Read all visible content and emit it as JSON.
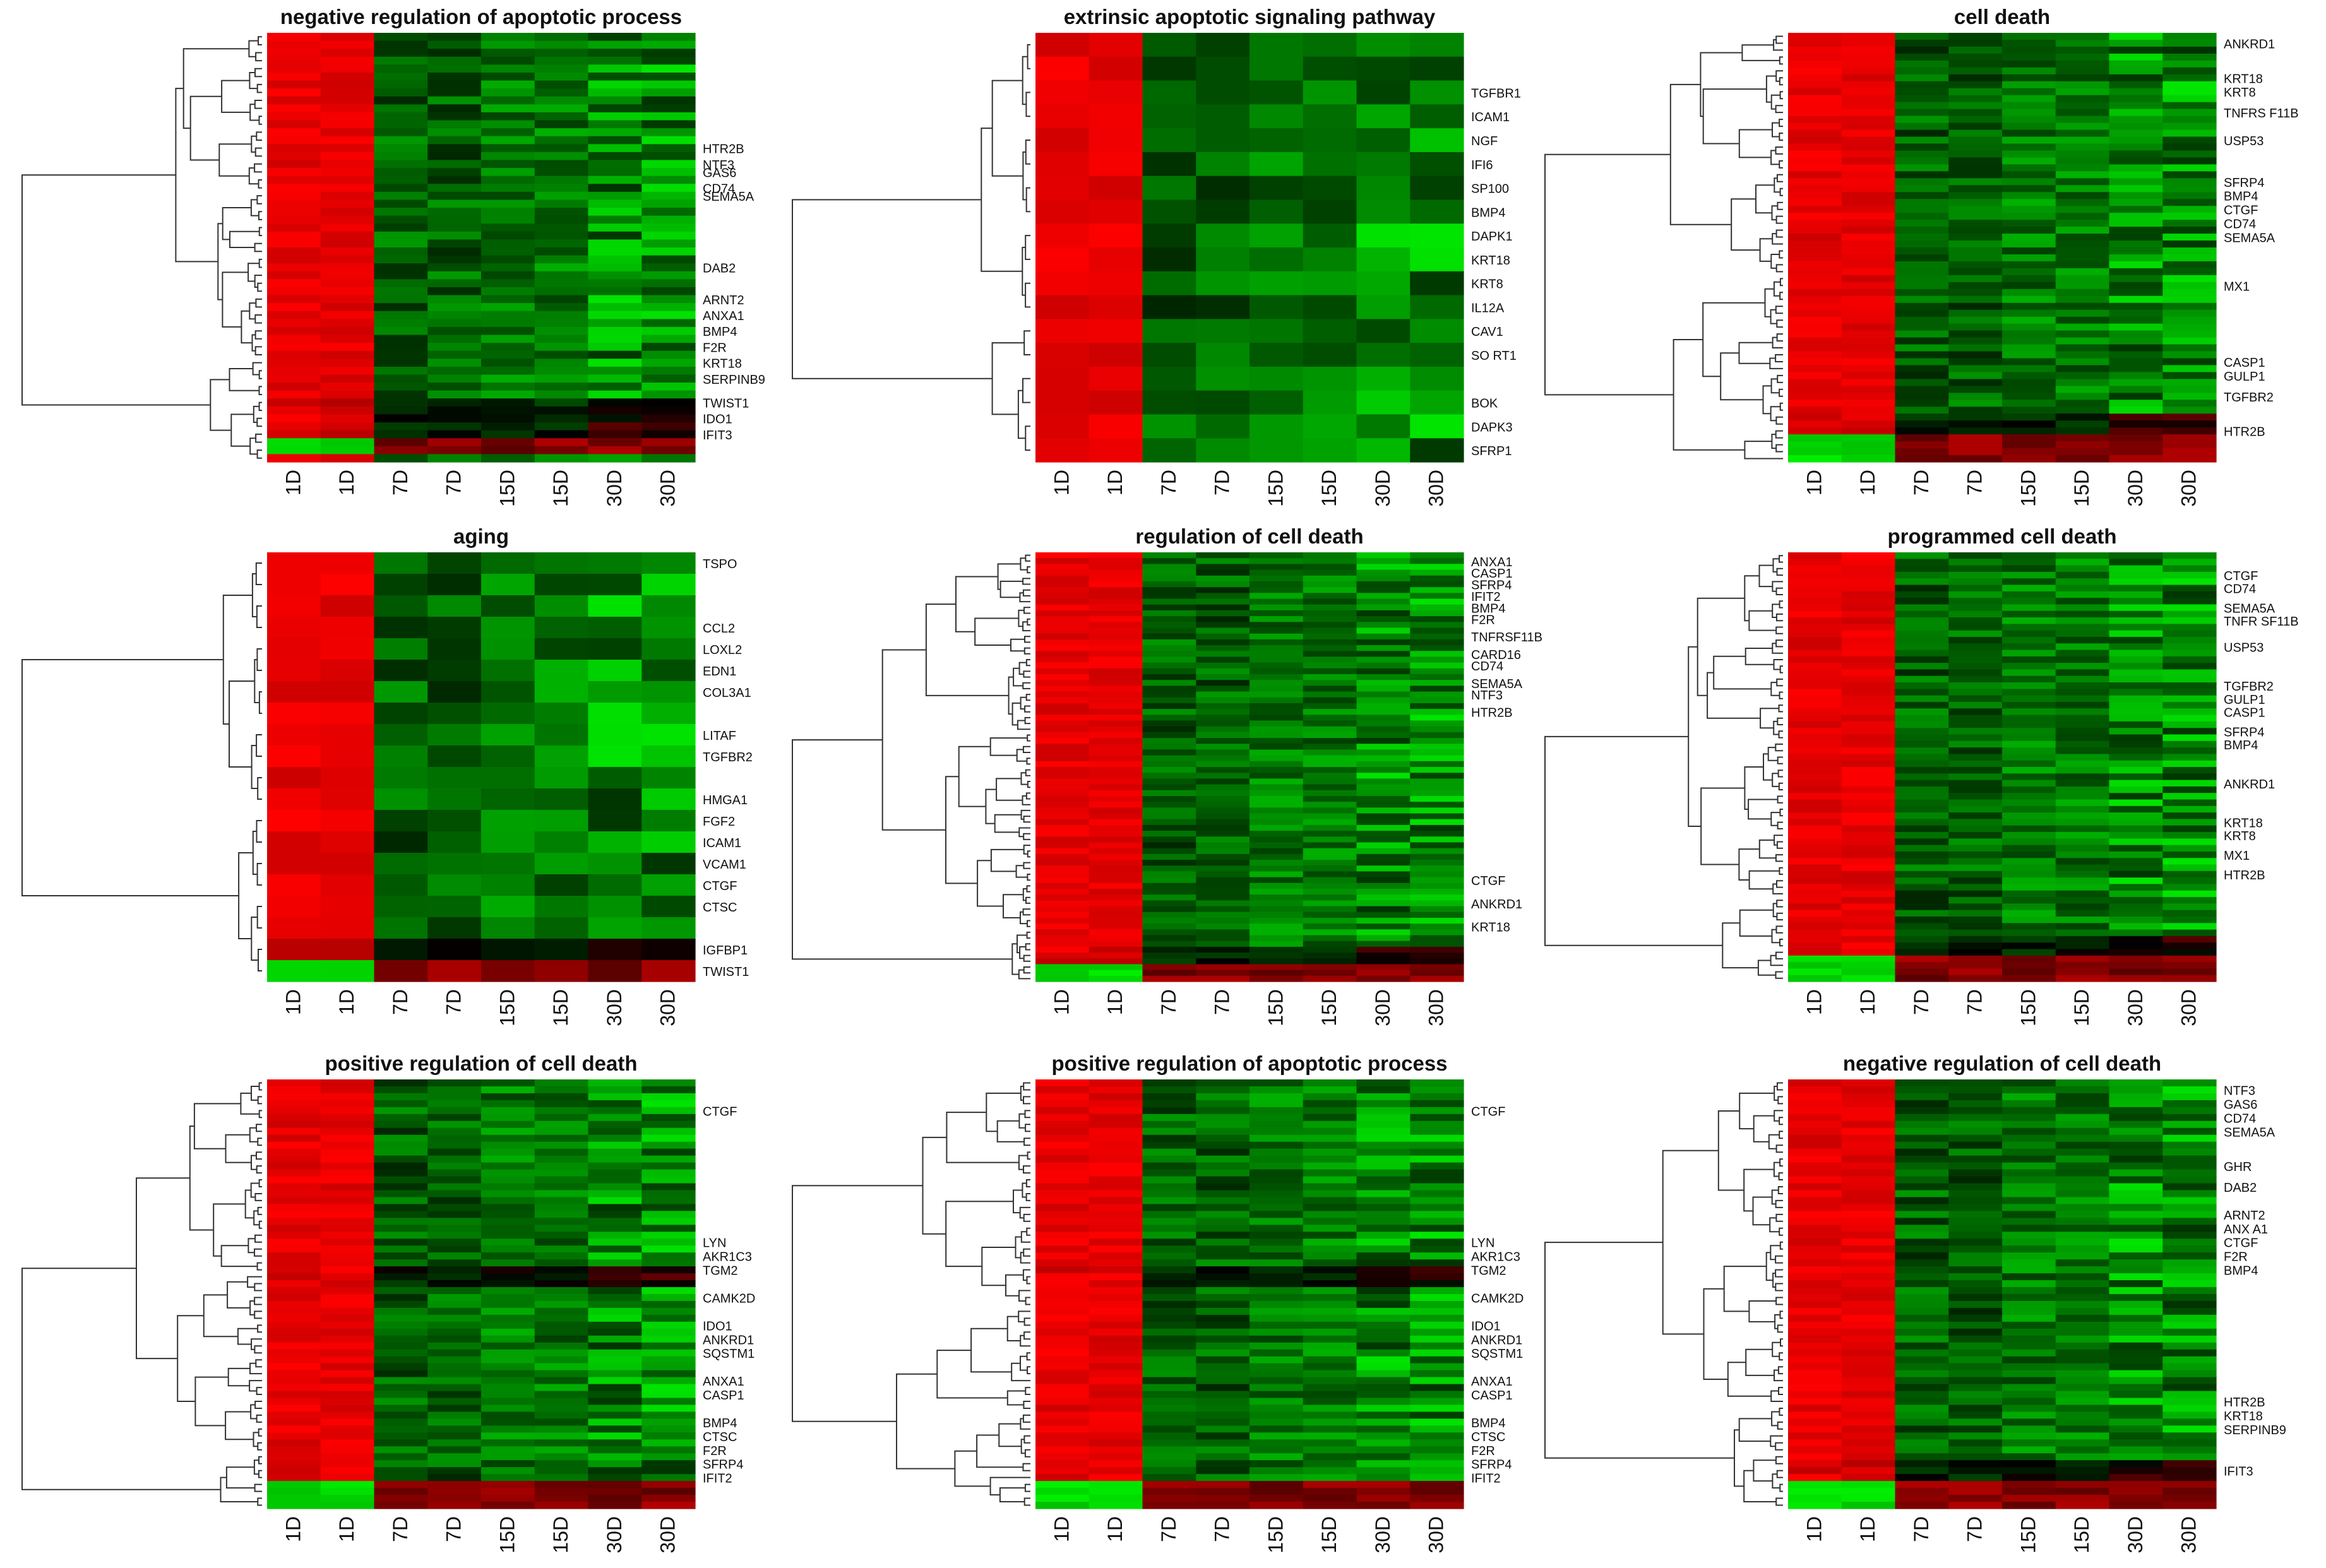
{
  "figure": {
    "colors": {
      "high": "#ff0000",
      "mid": "#000000",
      "low": "#00ff00",
      "dendrogram": "#333333",
      "text": "#111111"
    },
    "columns": [
      "1D",
      "1D",
      "7D",
      "7D",
      "15D",
      "15D",
      "30D",
      "30D"
    ]
  },
  "chart_data": [
    {
      "type": "heatmap",
      "title": "negative regulation of apoptotic process",
      "x": [
        "1D",
        "1D",
        "7D",
        "7D",
        "15D",
        "15D",
        "30D",
        "30D"
      ],
      "n_rows": 54,
      "row_labels": [
        {
          "label": "HTR2B",
          "row": 14
        },
        {
          "label": "NTF3",
          "row": 16
        },
        {
          "label": "GAS6",
          "row": 17
        },
        {
          "label": "CD74",
          "row": 19
        },
        {
          "label": "SEMA5A",
          "row": 20
        },
        {
          "label": "DAB2",
          "row": 29
        },
        {
          "label": "ARNT2",
          "row": 33
        },
        {
          "label": "ANXA1",
          "row": 35
        },
        {
          "label": "BMP4",
          "row": 37
        },
        {
          "label": "F2R",
          "row": 39
        },
        {
          "label": "KRT18",
          "row": 41
        },
        {
          "label": "SERPINB9",
          "row": 43
        },
        {
          "label": "TWIST1",
          "row": 46
        },
        {
          "label": "IDO1",
          "row": 48
        },
        {
          "label": "IFIT3",
          "row": 50
        }
      ],
      "pattern": {
        "low_rows": [
          51,
          52
        ],
        "mixed_rows": [
          46,
          47,
          48,
          49,
          50
        ]
      }
    },
    {
      "type": "heatmap",
      "title": "extrinsic apoptotic signaling pathway",
      "x": [
        "1D",
        "1D",
        "7D",
        "7D",
        "15D",
        "15D",
        "30D",
        "30D"
      ],
      "n_rows": 18,
      "row_labels": [
        {
          "label": "TGFBR1",
          "row": 2
        },
        {
          "label": "ICAM1",
          "row": 3
        },
        {
          "label": "NGF",
          "row": 4
        },
        {
          "label": "IFI6",
          "row": 5
        },
        {
          "label": "SP100",
          "row": 6
        },
        {
          "label": "BMP4",
          "row": 7
        },
        {
          "label": "DAPK1",
          "row": 8
        },
        {
          "label": "KRT18",
          "row": 9
        },
        {
          "label": "KRT8",
          "row": 10
        },
        {
          "label": "IL12A",
          "row": 11
        },
        {
          "label": "CAV1",
          "row": 12
        },
        {
          "label": "SO RT1",
          "row": 13
        },
        {
          "label": "BOK",
          "row": 15
        },
        {
          "label": "DAPK3",
          "row": 16
        },
        {
          "label": "SFRP1",
          "row": 17
        }
      ],
      "pattern": {
        "low_rows": [],
        "mixed_rows": []
      }
    },
    {
      "type": "heatmap",
      "title": "cell death",
      "x": [
        "1D",
        "1D",
        "7D",
        "7D",
        "15D",
        "15D",
        "30D",
        "30D"
      ],
      "n_rows": 62,
      "row_labels": [
        {
          "label": "ANKRD1",
          "row": 1
        },
        {
          "label": "KRT18",
          "row": 6
        },
        {
          "label": "KRT8",
          "row": 8
        },
        {
          "label": "TNFRS F11B",
          "row": 11
        },
        {
          "label": "USP53",
          "row": 15
        },
        {
          "label": "SFRP4",
          "row": 21
        },
        {
          "label": "BMP4",
          "row": 23
        },
        {
          "label": "CTGF",
          "row": 25
        },
        {
          "label": "CD74",
          "row": 27
        },
        {
          "label": "SEMA5A",
          "row": 29
        },
        {
          "label": "MX1",
          "row": 36
        },
        {
          "label": "CASP1",
          "row": 47
        },
        {
          "label": "GULP1",
          "row": 49
        },
        {
          "label": "TGFBR2",
          "row": 52
        },
        {
          "label": "HTR2B",
          "row": 57
        }
      ],
      "pattern": {
        "low_rows": [
          58,
          59,
          60,
          61
        ],
        "mixed_rows": [
          55,
          56,
          57
        ]
      }
    },
    {
      "type": "heatmap",
      "title": "aging",
      "x": [
        "1D",
        "1D",
        "7D",
        "7D",
        "15D",
        "15D",
        "30D",
        "30D"
      ],
      "n_rows": 20,
      "row_labels": [
        {
          "label": "TSPO",
          "row": 0
        },
        {
          "label": "CCL2",
          "row": 3
        },
        {
          "label": "LOXL2",
          "row": 4
        },
        {
          "label": "EDN1",
          "row": 5
        },
        {
          "label": "COL3A1",
          "row": 6
        },
        {
          "label": "LITAF",
          "row": 8
        },
        {
          "label": "TGFBR2",
          "row": 9
        },
        {
          "label": "HMGA1",
          "row": 11
        },
        {
          "label": "FGF2",
          "row": 12
        },
        {
          "label": "ICAM1",
          "row": 13
        },
        {
          "label": "VCAM1",
          "row": 14
        },
        {
          "label": "CTGF",
          "row": 15
        },
        {
          "label": "CTSC",
          "row": 16
        },
        {
          "label": "IGFBP1",
          "row": 18
        },
        {
          "label": "TWIST1",
          "row": 19
        }
      ],
      "pattern": {
        "low_rows": [
          19
        ],
        "mixed_rows": [
          18
        ]
      }
    },
    {
      "type": "heatmap",
      "title": "regulation of cell death",
      "x": [
        "1D",
        "1D",
        "7D",
        "7D",
        "15D",
        "15D",
        "30D",
        "30D"
      ],
      "n_rows": 74,
      "row_labels": [
        {
          "label": "ANXA1",
          "row": 1
        },
        {
          "label": "CASP1",
          "row": 3
        },
        {
          "label": "SFRP4",
          "row": 5
        },
        {
          "label": "IFIT2",
          "row": 7
        },
        {
          "label": "BMP4",
          "row": 9
        },
        {
          "label": "F2R",
          "row": 11
        },
        {
          "label": "TNFRSF11B",
          "row": 14
        },
        {
          "label": "CARD16",
          "row": 17
        },
        {
          "label": "CD74",
          "row": 19
        },
        {
          "label": "SEMA5A",
          "row": 22
        },
        {
          "label": "NTF3",
          "row": 24
        },
        {
          "label": "HTR2B",
          "row": 27
        },
        {
          "label": "CTGF",
          "row": 56
        },
        {
          "label": "ANKRD1",
          "row": 60
        },
        {
          "label": "KRT18",
          "row": 64
        }
      ],
      "pattern": {
        "low_rows": [
          71,
          72,
          73
        ],
        "mixed_rows": [
          68,
          69,
          70
        ]
      }
    },
    {
      "type": "heatmap",
      "title": "programmed cell death",
      "x": [
        "1D",
        "1D",
        "7D",
        "7D",
        "15D",
        "15D",
        "30D",
        "30D"
      ],
      "n_rows": 66,
      "row_labels": [
        {
          "label": "CTGF",
          "row": 3
        },
        {
          "label": "CD74",
          "row": 5
        },
        {
          "label": "SEMA5A",
          "row": 8
        },
        {
          "label": "TNFR SF11B",
          "row": 10
        },
        {
          "label": "USP53",
          "row": 14
        },
        {
          "label": "TGFBR2",
          "row": 20
        },
        {
          "label": "GULP1",
          "row": 22
        },
        {
          "label": "CASP1",
          "row": 24
        },
        {
          "label": "SFRP4",
          "row": 27
        },
        {
          "label": "BMP4",
          "row": 29
        },
        {
          "label": "ANKRD1",
          "row": 35
        },
        {
          "label": "KRT18",
          "row": 41
        },
        {
          "label": "KRT8",
          "row": 43
        },
        {
          "label": "MX1",
          "row": 46
        },
        {
          "label": "HTR2B",
          "row": 49
        }
      ],
      "pattern": {
        "low_rows": [
          62,
          63,
          64,
          65
        ],
        "mixed_rows": [
          59,
          60,
          61
        ]
      }
    },
    {
      "type": "heatmap",
      "title": "positive regulation of cell death",
      "x": [
        "1D",
        "1D",
        "7D",
        "7D",
        "15D",
        "15D",
        "30D",
        "30D"
      ],
      "n_rows": 62,
      "row_labels": [
        {
          "label": "CTGF",
          "row": 4
        },
        {
          "label": "LYN",
          "row": 23
        },
        {
          "label": "AKR1C3",
          "row": 25
        },
        {
          "label": "TGM2",
          "row": 27
        },
        {
          "label": "CAMK2D",
          "row": 31
        },
        {
          "label": "IDO1",
          "row": 35
        },
        {
          "label": "ANKRD1",
          "row": 37
        },
        {
          "label": "SQSTM1",
          "row": 39
        },
        {
          "label": "ANXA1",
          "row": 43
        },
        {
          "label": "CASP1",
          "row": 45
        },
        {
          "label": "BMP4",
          "row": 49
        },
        {
          "label": "CTSC",
          "row": 51
        },
        {
          "label": "F2R",
          "row": 53
        },
        {
          "label": "SFRP4",
          "row": 55
        },
        {
          "label": "IFIT2",
          "row": 57
        }
      ],
      "pattern": {
        "low_rows": [
          58,
          59,
          60,
          61
        ],
        "mixed_rows": [
          27,
          28,
          29
        ]
      }
    },
    {
      "type": "heatmap",
      "title": "positive regulation of apoptotic process",
      "x": [
        "1D",
        "1D",
        "7D",
        "7D",
        "15D",
        "15D",
        "30D",
        "30D"
      ],
      "n_rows": 62,
      "row_labels": [
        {
          "label": "CTGF",
          "row": 4
        },
        {
          "label": "LYN",
          "row": 23
        },
        {
          "label": "AKR1C3",
          "row": 25
        },
        {
          "label": "TGM2",
          "row": 27
        },
        {
          "label": "CAMK2D",
          "row": 31
        },
        {
          "label": "IDO1",
          "row": 35
        },
        {
          "label": "ANKRD1",
          "row": 37
        },
        {
          "label": "SQSTM1",
          "row": 39
        },
        {
          "label": "ANXA1",
          "row": 43
        },
        {
          "label": "CASP1",
          "row": 45
        },
        {
          "label": "BMP4",
          "row": 49
        },
        {
          "label": "CTSC",
          "row": 51
        },
        {
          "label": "F2R",
          "row": 53
        },
        {
          "label": "SFRP4",
          "row": 55
        },
        {
          "label": "IFIT2",
          "row": 57
        }
      ],
      "pattern": {
        "low_rows": [
          58,
          59,
          60,
          61
        ],
        "mixed_rows": [
          27,
          28,
          29
        ]
      }
    },
    {
      "type": "heatmap",
      "title": "negative regulation of cell death",
      "x": [
        "1D",
        "1D",
        "7D",
        "7D",
        "15D",
        "15D",
        "30D",
        "30D"
      ],
      "n_rows": 62,
      "row_labels": [
        {
          "label": "NTF3",
          "row": 1
        },
        {
          "label": "GAS6",
          "row": 3
        },
        {
          "label": "CD74",
          "row": 5
        },
        {
          "label": "SEMA5A",
          "row": 7
        },
        {
          "label": "GHR",
          "row": 12
        },
        {
          "label": "DAB2",
          "row": 15
        },
        {
          "label": "ARNT2",
          "row": 19
        },
        {
          "label": "ANX A1",
          "row": 21
        },
        {
          "label": "CTGF",
          "row": 23
        },
        {
          "label": "F2R",
          "row": 25
        },
        {
          "label": "BMP4",
          "row": 27
        },
        {
          "label": "HTR2B",
          "row": 46
        },
        {
          "label": "KRT18",
          "row": 48
        },
        {
          "label": "SERPINB9",
          "row": 50
        },
        {
          "label": "IFIT3",
          "row": 56
        }
      ],
      "pattern": {
        "low_rows": [
          58,
          59,
          60,
          61
        ],
        "mixed_rows": [
          55,
          56,
          57
        ]
      }
    }
  ]
}
